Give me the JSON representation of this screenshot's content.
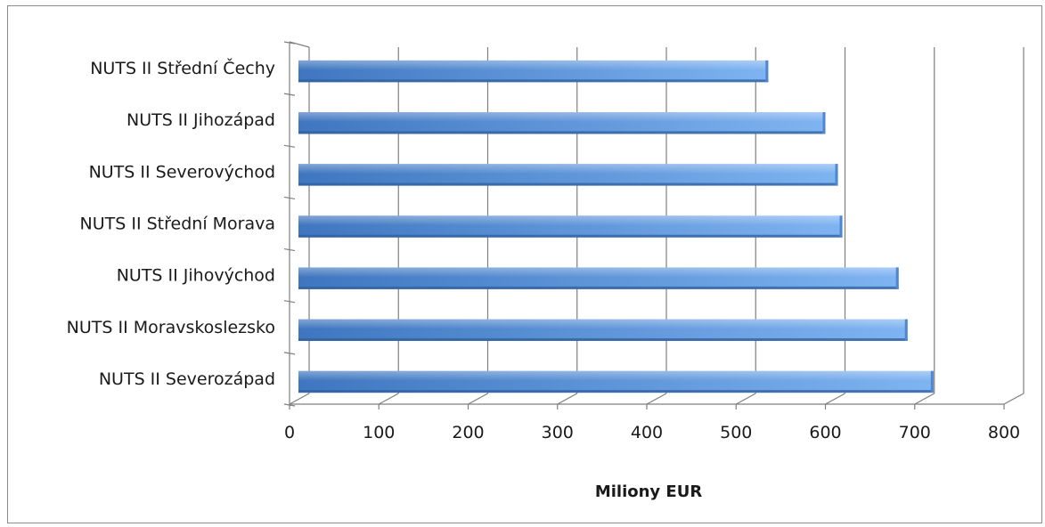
{
  "chart_data": {
    "type": "bar",
    "orientation": "horizontal",
    "categories": [
      "NUTS II Střední Čechy",
      "NUTS II Jihozápad",
      "NUTS II Severovýchod",
      "NUTS II Střední Morava",
      "NUTS II Jihovýchod",
      "NUTS II Moravskoslezsko",
      "NUTS II Severozápad"
    ],
    "values": [
      536,
      600,
      614,
      619,
      682,
      692,
      721
    ],
    "xlabel": "Miliony EUR",
    "ylabel": "",
    "xlim": [
      0,
      800
    ],
    "xticks": [
      "0",
      "100",
      "200",
      "300",
      "400",
      "500",
      "600",
      "700",
      "800"
    ],
    "grid": true,
    "legend": "none",
    "colors": {
      "bar_light": "#7fb4f2",
      "bar_dark": "#3f76bf",
      "grid": "#7f7f7f"
    }
  }
}
